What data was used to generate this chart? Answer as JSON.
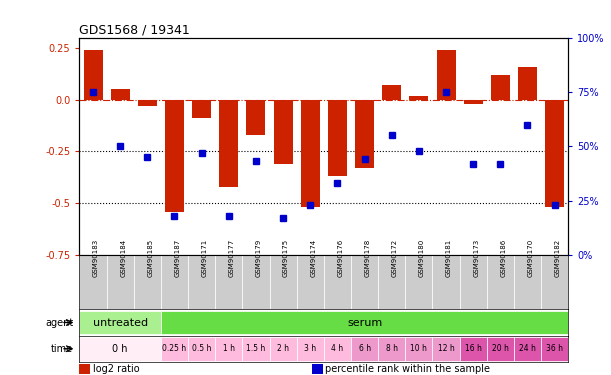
{
  "title": "GDS1568 / 19341",
  "samples": [
    "GSM90183",
    "GSM90184",
    "GSM90185",
    "GSM90187",
    "GSM90171",
    "GSM90177",
    "GSM90179",
    "GSM90175",
    "GSM90174",
    "GSM90176",
    "GSM90178",
    "GSM90172",
    "GSM90180",
    "GSM90181",
    "GSM90173",
    "GSM90186",
    "GSM90170",
    "GSM90182"
  ],
  "log2_ratio": [
    0.24,
    0.05,
    -0.03,
    -0.54,
    -0.09,
    -0.42,
    -0.17,
    -0.31,
    -0.52,
    -0.37,
    -0.33,
    0.07,
    0.02,
    0.24,
    -0.02,
    0.12,
    0.16,
    -0.52
  ],
  "percentile_rank": [
    75,
    50,
    45,
    18,
    47,
    18,
    43,
    17,
    23,
    33,
    44,
    55,
    48,
    75,
    42,
    42,
    60,
    23
  ],
  "bar_color": "#cc2200",
  "dot_color": "#0000cc",
  "hline_color": "#cc2200",
  "dotline1_val": -0.25,
  "dotline2_val": -0.5,
  "ylim_left": [
    -0.75,
    0.3
  ],
  "ylim_right": [
    0,
    100
  ],
  "yticks_left": [
    0.25,
    0.0,
    -0.25,
    -0.5,
    -0.75
  ],
  "yticks_right": [
    100,
    75,
    50,
    25,
    0
  ],
  "agent_groups": [
    {
      "label": "untreated",
      "start": 0,
      "end": 3,
      "color": "#aaf090"
    },
    {
      "label": "serum",
      "start": 3,
      "end": 18,
      "color": "#66dd44"
    }
  ],
  "time_groups": [
    {
      "label": "0 h",
      "start": 0,
      "end": 3,
      "color": "#ffeef6"
    },
    {
      "label": "0.25 h",
      "start": 3,
      "end": 4,
      "color": "#ffbbdd"
    },
    {
      "label": "0.5 h",
      "start": 4,
      "end": 5,
      "color": "#ffbbdd"
    },
    {
      "label": "1 h",
      "start": 5,
      "end": 6,
      "color": "#ffbbdd"
    },
    {
      "label": "1.5 h",
      "start": 6,
      "end": 7,
      "color": "#ffbbdd"
    },
    {
      "label": "2 h",
      "start": 7,
      "end": 8,
      "color": "#ffbbdd"
    },
    {
      "label": "3 h",
      "start": 8,
      "end": 9,
      "color": "#ffbbdd"
    },
    {
      "label": "4 h",
      "start": 9,
      "end": 10,
      "color": "#ffbbdd"
    },
    {
      "label": "6 h",
      "start": 10,
      "end": 11,
      "color": "#ee99cc"
    },
    {
      "label": "8 h",
      "start": 11,
      "end": 12,
      "color": "#ee99cc"
    },
    {
      "label": "10 h",
      "start": 12,
      "end": 13,
      "color": "#ee99cc"
    },
    {
      "label": "12 h",
      "start": 13,
      "end": 14,
      "color": "#ee99cc"
    },
    {
      "label": "16 h",
      "start": 14,
      "end": 15,
      "color": "#dd55aa"
    },
    {
      "label": "20 h",
      "start": 15,
      "end": 16,
      "color": "#dd55aa"
    },
    {
      "label": "24 h",
      "start": 16,
      "end": 17,
      "color": "#dd55aa"
    },
    {
      "label": "36 h",
      "start": 17,
      "end": 18,
      "color": "#dd55aa"
    }
  ],
  "legend_items": [
    {
      "label": "log2 ratio",
      "color": "#cc2200"
    },
    {
      "label": "percentile rank within the sample",
      "color": "#0000cc"
    }
  ],
  "bg_color": "#ffffff",
  "sample_bg": "#cccccc"
}
